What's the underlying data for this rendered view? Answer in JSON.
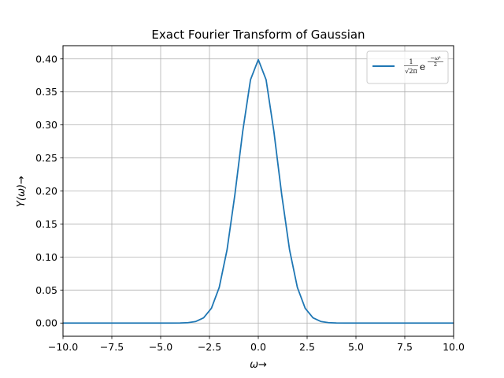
{
  "chart_data": {
    "type": "line",
    "title": "Exact Fourier Transform of Gaussian",
    "xlabel": "ω→",
    "ylabel": "Y(ω)→",
    "xlim": [
      -10,
      10
    ],
    "ylim": [
      -0.02,
      0.42
    ],
    "xticks": [
      -10,
      -7.5,
      -5,
      -2.5,
      0,
      2.5,
      5,
      7.5,
      10
    ],
    "xtick_labels": [
      "−10.0",
      "−7.5",
      "−5.0",
      "−2.5",
      "0.0",
      "2.5",
      "5.0",
      "7.5",
      "10.0"
    ],
    "yticks": [
      0,
      0.05,
      0.1,
      0.15,
      0.2,
      0.25,
      0.3,
      0.35,
      0.4
    ],
    "ytick_labels": [
      "0.00",
      "0.05",
      "0.10",
      "0.15",
      "0.20",
      "0.25",
      "0.30",
      "0.35",
      "0.40"
    ],
    "grid": true,
    "legend_position": "top-right",
    "series": [
      {
        "name": "1/√(2π) e^(−ω²/2)",
        "color": "#1f77b4",
        "x": [
          -10.0,
          -9.6,
          -9.2,
          -8.8,
          -8.4,
          -8.0,
          -7.6,
          -7.2,
          -6.8,
          -6.4,
          -6.0,
          -5.6,
          -5.2,
          -4.8,
          -4.4,
          -4.0,
          -3.6,
          -3.2,
          -2.8,
          -2.4,
          -2.0,
          -1.6,
          -1.2,
          -0.8,
          -0.4,
          0.0,
          0.4,
          0.8,
          1.2,
          1.6,
          2.0,
          2.4,
          2.8,
          3.2,
          3.6,
          4.0,
          4.4,
          4.8,
          5.2,
          5.6,
          6.0,
          6.4,
          6.8,
          7.2,
          7.6,
          8.0,
          8.4,
          8.8,
          9.2,
          9.6,
          10.0
        ],
        "y": [
          0.0,
          0.0,
          0.0,
          0.0,
          0.0,
          0.0,
          0.0,
          0.0,
          0.0,
          0.0,
          0.0,
          0.0,
          0.0,
          0.0,
          0.0,
          0.0001,
          0.0006,
          0.0024,
          0.0079,
          0.0224,
          0.054,
          0.1109,
          0.1942,
          0.2897,
          0.3683,
          0.3989,
          0.3683,
          0.2897,
          0.1942,
          0.1109,
          0.054,
          0.0224,
          0.0079,
          0.0024,
          0.0006,
          0.0001,
          0.0,
          0.0,
          0.0,
          0.0,
          0.0,
          0.0,
          0.0,
          0.0,
          0.0,
          0.0,
          0.0,
          0.0,
          0.0,
          0.0,
          0.0
        ]
      }
    ],
    "legend": {
      "frac_num": "1",
      "frac_den": "√2π",
      "base": "e",
      "exp_num": "−ω²",
      "exp_den": "2"
    }
  }
}
